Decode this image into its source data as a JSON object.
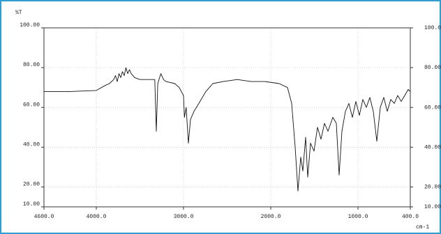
{
  "chart_data": {
    "type": "line",
    "ylabel": "%T",
    "xlabel": "cm-1",
    "x": [
      4600,
      4300,
      4000,
      3900,
      3850,
      3800,
      3780,
      3760,
      3740,
      3720,
      3700,
      3680,
      3660,
      3640,
      3620,
      3600,
      3560,
      3500,
      3400,
      3330,
      3312,
      3295,
      3260,
      3230,
      3200,
      3100,
      3050,
      3000,
      2990,
      2970,
      2944,
      2920,
      2880,
      2824,
      2744,
      2664,
      2544,
      2384,
      2224,
      2064,
      1904,
      1808,
      1760,
      1720,
      1688,
      1656,
      1632,
      1600,
      1576,
      1544,
      1504,
      1464,
      1424,
      1384,
      1344,
      1288,
      1248,
      1216,
      1184,
      1144,
      1104,
      1064,
      1024,
      984,
      944,
      904,
      864,
      824,
      784,
      744,
      704,
      664,
      624,
      584,
      544,
      504,
      464,
      424,
      400
    ],
    "values": [
      68,
      68,
      68.5,
      71,
      72,
      74,
      76,
      73,
      77,
      75,
      78,
      76,
      80,
      77,
      79,
      77,
      75,
      74,
      74,
      74,
      48,
      72,
      77,
      74,
      73,
      72,
      70,
      66,
      55,
      60,
      42,
      54,
      58,
      62,
      68,
      72,
      73,
      74,
      73,
      73,
      72,
      70,
      62,
      40,
      18,
      35,
      28,
      45,
      25,
      42,
      38,
      50,
      44,
      52,
      48,
      55,
      52,
      26,
      48,
      58,
      62,
      55,
      63,
      56,
      64,
      60,
      65,
      58,
      43,
      60,
      65,
      58,
      64,
      62,
      66,
      63,
      66,
      69,
      68
    ],
    "color": "#111111",
    "xlim": [
      4600,
      400
    ],
    "ylim": [
      10,
      100
    ],
    "xticks": [
      {
        "value": 4600,
        "label": "4600.0"
      },
      {
        "value": 4000,
        "label": "4000.0"
      },
      {
        "value": 3000,
        "label": "3000.0"
      },
      {
        "value": 2000,
        "label": "2000.0"
      },
      {
        "value": 1000,
        "label": "1000.0"
      },
      {
        "value": 400,
        "label": "400.0"
      }
    ],
    "yticks": [
      {
        "value": 10,
        "label": "10.00"
      },
      {
        "value": 20,
        "label": "20.00"
      },
      {
        "value": 40,
        "label": "40.00"
      },
      {
        "value": 60,
        "label": "60.00"
      },
      {
        "value": 80,
        "label": "80.00"
      },
      {
        "value": 100,
        "label": "100.00"
      }
    ],
    "grid": true
  }
}
